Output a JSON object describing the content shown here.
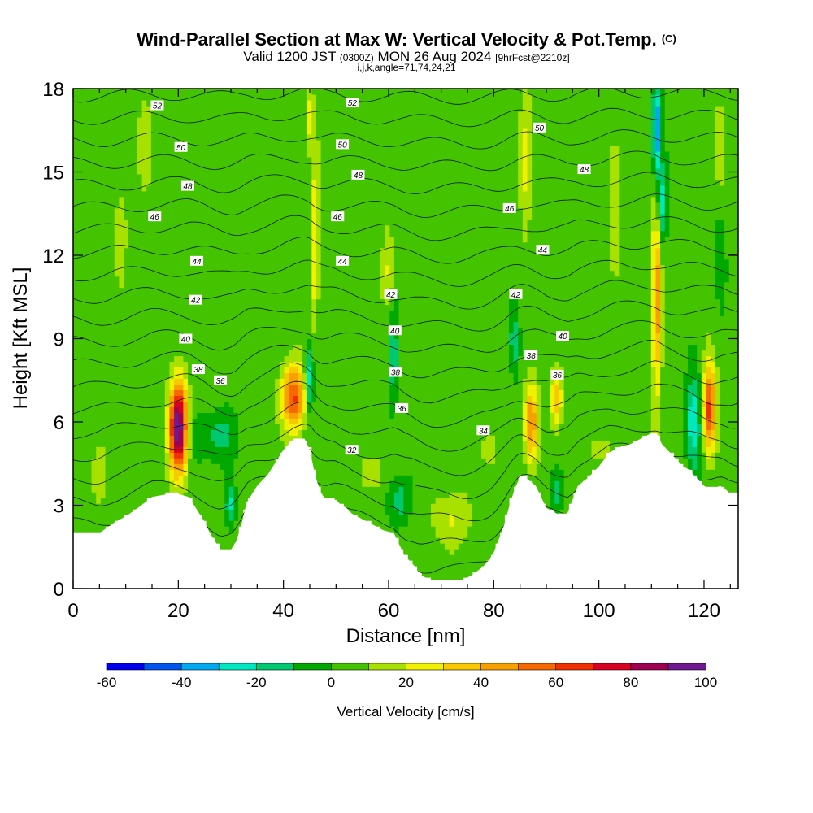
{
  "header": {
    "title": "Wind-Parallel Section at Max W: Vertical Velocity & Pot.Temp.",
    "copyright": "(C)",
    "valid_prefix": "Valid 1200 JST",
    "valid_utc": "(0300Z)",
    "valid_date": "MON 26 Aug 2024",
    "forecast": "[9hrFcst@2210z]",
    "indices": "i,j,k,angle=71,74,24,21"
  },
  "chart_data": {
    "type": "heatmap",
    "xlabel": "Distance [nm]",
    "ylabel": "Height [Kft MSL]",
    "xlim": [
      0,
      126.5
    ],
    "ylim": [
      0,
      18
    ],
    "xticks": [
      0,
      20,
      40,
      60,
      80,
      100,
      120
    ],
    "yticks": [
      0,
      3,
      6,
      9,
      12,
      15,
      18
    ],
    "x_minor_step": 5,
    "colorbar": {
      "label": "Vertical Velocity [cm/s]",
      "levels": [
        -60,
        -50,
        -40,
        -30,
        -20,
        -10,
        0,
        10,
        20,
        30,
        40,
        50,
        60,
        70,
        80,
        90,
        100
      ],
      "tick_labels": [
        "-60",
        "-40",
        "-20",
        "0",
        "20",
        "40",
        "60",
        "80",
        "100"
      ],
      "colors": [
        "#0000ee",
        "#0055ee",
        "#00aaf0",
        "#00e8c0",
        "#00c870",
        "#00a800",
        "#44c400",
        "#a8e000",
        "#f0f000",
        "#f8c800",
        "#f8a000",
        "#f86800",
        "#f03000",
        "#d80020",
        "#a00050",
        "#701890"
      ]
    },
    "terrain": [
      [
        0,
        2.0
      ],
      [
        4,
        2.0
      ],
      [
        5,
        2.0
      ],
      [
        8,
        2.4
      ],
      [
        10,
        2.6
      ],
      [
        13,
        3.0
      ],
      [
        15,
        3.3
      ],
      [
        18,
        3.4
      ],
      [
        20,
        3.4
      ],
      [
        22,
        3.3
      ],
      [
        23,
        3.0
      ],
      [
        24,
        2.7
      ],
      [
        25,
        2.4
      ],
      [
        26,
        2.0
      ],
      [
        27,
        1.7
      ],
      [
        28,
        1.4
      ],
      [
        30,
        1.4
      ],
      [
        31,
        1.7
      ],
      [
        32,
        2.3
      ],
      [
        33,
        3.1
      ],
      [
        35,
        3.7
      ],
      [
        37,
        4.1
      ],
      [
        38,
        4.4
      ],
      [
        40,
        5.0
      ],
      [
        42,
        5.4
      ],
      [
        44,
        5.4
      ],
      [
        45,
        5.0
      ],
      [
        46,
        4.1
      ],
      [
        47,
        3.5
      ],
      [
        48,
        3.2
      ],
      [
        50,
        3.2
      ],
      [
        51,
        3.0
      ],
      [
        52,
        2.9
      ],
      [
        53,
        2.7
      ],
      [
        55,
        2.5
      ],
      [
        57,
        2.3
      ],
      [
        59,
        2.1
      ],
      [
        61,
        2.0
      ],
      [
        63,
        1.2
      ],
      [
        65,
        0.8
      ],
      [
        66,
        0.5
      ],
      [
        68,
        0.3
      ],
      [
        74,
        0.3
      ],
      [
        76,
        0.5
      ],
      [
        78,
        0.8
      ],
      [
        79,
        1.0
      ],
      [
        80,
        1.3
      ],
      [
        81,
        1.8
      ],
      [
        82,
        2.3
      ],
      [
        83,
        3.0
      ],
      [
        84,
        3.6
      ],
      [
        85,
        4.0
      ],
      [
        86,
        4.0
      ],
      [
        88,
        3.7
      ],
      [
        89,
        3.3
      ],
      [
        90,
        2.9
      ],
      [
        92,
        2.7
      ],
      [
        94,
        2.7
      ],
      [
        95,
        3.2
      ],
      [
        96,
        3.7
      ],
      [
        98,
        4.0
      ],
      [
        100,
        4.4
      ],
      [
        102,
        4.9
      ],
      [
        104,
        5.1
      ],
      [
        106,
        5.2
      ],
      [
        108,
        5.4
      ],
      [
        110,
        5.6
      ],
      [
        111,
        5.6
      ],
      [
        112,
        5.2
      ],
      [
        114,
        4.8
      ],
      [
        115,
        4.6
      ],
      [
        116,
        4.4
      ],
      [
        117,
        4.3
      ],
      [
        118,
        4.1
      ],
      [
        119,
        3.9
      ],
      [
        120,
        3.7
      ],
      [
        121,
        3.6
      ],
      [
        122,
        3.6
      ],
      [
        123,
        3.7
      ],
      [
        124,
        3.6
      ],
      [
        125,
        3.4
      ],
      [
        126.5,
        3.4
      ]
    ],
    "w_features": [
      {
        "x": 20,
        "y": 5.8,
        "sx": 1.7,
        "sy": 1.6,
        "amp": 95
      },
      {
        "x": 42,
        "y": 6.9,
        "sx": 2.3,
        "sy": 1.2,
        "amp": 58
      },
      {
        "x": 121,
        "y": 6.5,
        "sx": 1.3,
        "sy": 1.6,
        "amp": 62
      },
      {
        "x": 87,
        "y": 6.0,
        "sx": 1.3,
        "sy": 1.4,
        "amp": 48
      },
      {
        "x": 92,
        "y": 6.8,
        "sx": 1.2,
        "sy": 1.0,
        "amp": 35
      },
      {
        "x": 111,
        "y": 10.5,
        "sx": 0.9,
        "sy": 3.5,
        "amp": 45
      },
      {
        "x": 111,
        "y": 16.5,
        "sx": 0.8,
        "sy": 1.8,
        "amp": -48
      },
      {
        "x": 112,
        "y": 13.8,
        "sx": 0.9,
        "sy": 1.4,
        "amp": -30
      },
      {
        "x": 118,
        "y": 6.0,
        "sx": 1.4,
        "sy": 1.8,
        "amp": -35
      },
      {
        "x": 45,
        "y": 7.5,
        "sx": 0.8,
        "sy": 1.2,
        "amp": -35
      },
      {
        "x": 46,
        "y": 12.5,
        "sx": 0.8,
        "sy": 3.0,
        "amp": 28
      },
      {
        "x": 45,
        "y": 17,
        "sx": 0.8,
        "sy": 1.2,
        "amp": 22
      },
      {
        "x": 27,
        "y": 5.5,
        "sx": 4.0,
        "sy": 0.9,
        "amp": -18
      },
      {
        "x": 30,
        "y": 3.0,
        "sx": 1.0,
        "sy": 0.7,
        "amp": -25
      },
      {
        "x": 62,
        "y": 3.2,
        "sx": 2.0,
        "sy": 0.8,
        "amp": -20
      },
      {
        "x": 72,
        "y": 2.5,
        "sx": 4.0,
        "sy": 1.0,
        "amp": 16
      },
      {
        "x": 57,
        "y": 4.2,
        "sx": 2.0,
        "sy": 0.7,
        "amp": 16
      },
      {
        "x": 61,
        "y": 8.2,
        "sx": 0.8,
        "sy": 2.0,
        "amp": -22
      },
      {
        "x": 60,
        "y": 11.5,
        "sx": 1.2,
        "sy": 1.5,
        "amp": 18
      },
      {
        "x": 84,
        "y": 9.0,
        "sx": 1.0,
        "sy": 1.2,
        "amp": -22
      },
      {
        "x": 86,
        "y": 15.5,
        "sx": 1.2,
        "sy": 2.5,
        "amp": 22
      },
      {
        "x": 103,
        "y": 13,
        "sx": 1.0,
        "sy": 2.5,
        "amp": 16
      },
      {
        "x": 123,
        "y": 12,
        "sx": 1.0,
        "sy": 1.5,
        "amp": -12
      },
      {
        "x": 123,
        "y": 16,
        "sx": 1.0,
        "sy": 1.5,
        "amp": 14
      },
      {
        "x": 14,
        "y": 16,
        "sx": 1.4,
        "sy": 2.0,
        "amp": 12
      },
      {
        "x": 9,
        "y": 13,
        "sx": 1.5,
        "sy": 2.0,
        "amp": 10
      },
      {
        "x": 92,
        "y": 3.5,
        "sx": 1.2,
        "sy": 0.6,
        "amp": -20
      },
      {
        "x": 5,
        "y": 4.0,
        "sx": 1.5,
        "sy": 1.0,
        "amp": 12
      },
      {
        "x": 100,
        "y": 5.0,
        "sx": 2.0,
        "sy": 0.5,
        "amp": 14
      },
      {
        "x": 79,
        "y": 5.0,
        "sx": 1.5,
        "sy": 0.8,
        "amp": 14
      }
    ],
    "theta_contours": {
      "levels": [
        32,
        33,
        34,
        35,
        36,
        37,
        38,
        39,
        40,
        41,
        42,
        43,
        44,
        45,
        46,
        47,
        48,
        49,
        50,
        51,
        52,
        53
      ],
      "labels": [
        {
          "text": "52",
          "x": 16.0,
          "y": 17.4
        },
        {
          "text": "50",
          "x": 20.5,
          "y": 15.9
        },
        {
          "text": "48",
          "x": 21.8,
          "y": 14.5
        },
        {
          "text": "46",
          "x": 15.5,
          "y": 13.4
        },
        {
          "text": "44",
          "x": 23.5,
          "y": 11.8
        },
        {
          "text": "42",
          "x": 23.3,
          "y": 10.4
        },
        {
          "text": "40",
          "x": 21.4,
          "y": 9.0
        },
        {
          "text": "38",
          "x": 23.8,
          "y": 7.9
        },
        {
          "text": "36",
          "x": 28.0,
          "y": 7.5
        },
        {
          "text": "52",
          "x": 53.1,
          "y": 17.5
        },
        {
          "text": "50",
          "x": 51.2,
          "y": 16.0
        },
        {
          "text": "48",
          "x": 54.2,
          "y": 14.9
        },
        {
          "text": "46",
          "x": 50.3,
          "y": 13.4
        },
        {
          "text": "44",
          "x": 51.2,
          "y": 11.8
        },
        {
          "text": "42",
          "x": 60.4,
          "y": 10.6
        },
        {
          "text": "40",
          "x": 61.2,
          "y": 9.3
        },
        {
          "text": "38",
          "x": 61.3,
          "y": 7.8
        },
        {
          "text": "36",
          "x": 62.5,
          "y": 6.5
        },
        {
          "text": "34",
          "x": 78.0,
          "y": 5.7
        },
        {
          "text": "32",
          "x": 53.0,
          "y": 5.0
        },
        {
          "text": "50",
          "x": 88.7,
          "y": 16.6
        },
        {
          "text": "48",
          "x": 97.2,
          "y": 15.1
        },
        {
          "text": "46",
          "x": 83.0,
          "y": 13.7
        },
        {
          "text": "44",
          "x": 89.3,
          "y": 12.2
        },
        {
          "text": "42",
          "x": 84.2,
          "y": 10.6
        },
        {
          "text": "40",
          "x": 93.1,
          "y": 9.1
        },
        {
          "text": "38",
          "x": 87.1,
          "y": 8.4
        },
        {
          "text": "36",
          "x": 92.1,
          "y": 7.7
        }
      ]
    }
  }
}
